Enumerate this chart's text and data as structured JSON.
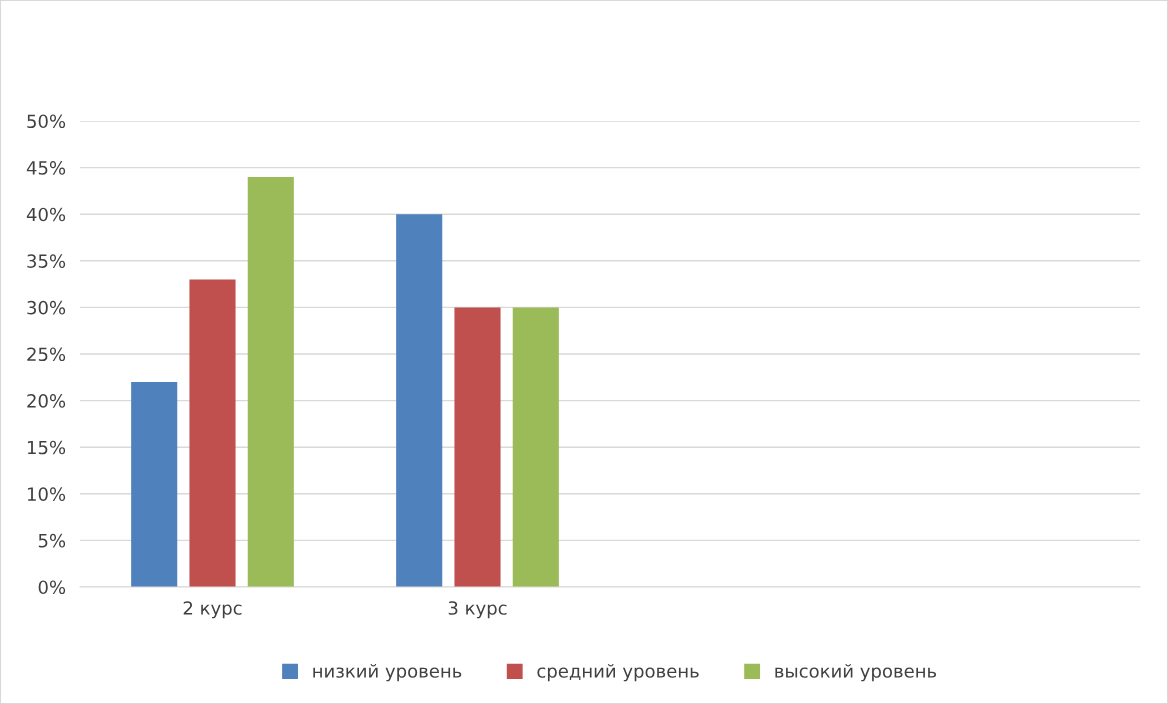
{
  "chart_data": {
    "type": "bar",
    "categories": [
      "2 курс",
      "3 курс",
      null,
      null
    ],
    "series": [
      {
        "name": "низкий уровень",
        "color": "#4f81bd",
        "values": [
          22,
          40,
          null,
          null
        ]
      },
      {
        "name": "средний уровень",
        "color": "#c0504d",
        "values": [
          33,
          30,
          null,
          null
        ]
      },
      {
        "name": "высокий уровень",
        "color": "#9bbb59",
        "values": [
          44,
          30,
          null,
          null
        ]
      }
    ],
    "ylim": [
      0,
      50
    ],
    "yticks": [
      {
        "value": 0,
        "label": "0%"
      },
      {
        "value": 5,
        "label": "5%"
      },
      {
        "value": 10,
        "label": "10%"
      },
      {
        "value": 15,
        "label": "15%"
      },
      {
        "value": 20,
        "label": "20%"
      },
      {
        "value": 25,
        "label": "25%"
      },
      {
        "value": 30,
        "label": "30%"
      },
      {
        "value": 35,
        "label": "35%"
      },
      {
        "value": 40,
        "label": "40%"
      },
      {
        "value": 45,
        "label": "45%"
      },
      {
        "value": 50,
        "label": "50%"
      }
    ],
    "grid": "y",
    "legend": "bottom"
  }
}
